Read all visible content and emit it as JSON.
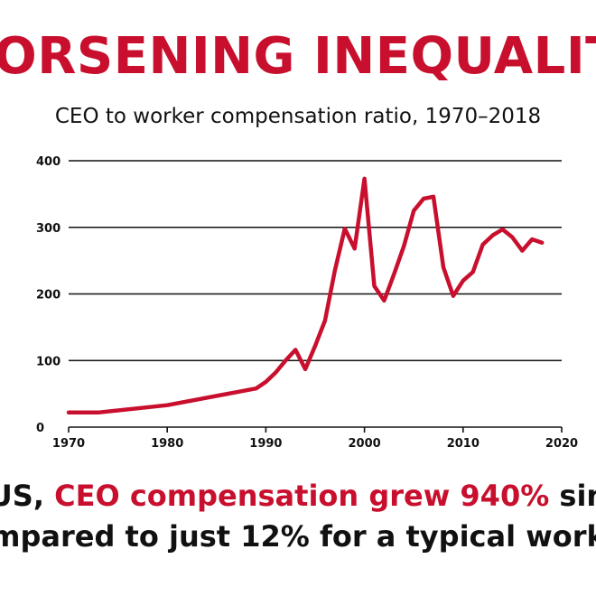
{
  "headline": "ORSENING INEQUALIT",
  "caption": {
    "line1_prefix": "US, ",
    "line1_highlight": "CEO compensation grew 940%",
    "line1_suffix": " sin",
    "line2": "mpared to just 12% for a typical work"
  },
  "colors": {
    "accent": "#c8102e",
    "text": "#111111",
    "grid": "#111111"
  },
  "chart_data": {
    "type": "line",
    "title": "CEO to worker compensation ratio, 1970–2018",
    "xlabel": "",
    "ylabel": "",
    "xlim": [
      1970,
      2020
    ],
    "ylim": [
      0,
      400
    ],
    "x_ticks": [
      1970,
      1980,
      1990,
      2000,
      2010,
      2020
    ],
    "y_ticks": [
      0,
      100,
      200,
      300,
      400
    ],
    "grid": "horizontal",
    "series": [
      {
        "color": "#c8102e",
        "x": [
          1970,
          1973,
          1980,
          1989,
          1990,
          1991,
          1992,
          1993,
          1994,
          1995,
          1996,
          1997,
          1998,
          1999,
          2000,
          2001,
          2002,
          2003,
          2004,
          2005,
          2006,
          2007,
          2008,
          2009,
          2010,
          2011,
          2012,
          2013,
          2014,
          2015,
          2016,
          2017,
          2018
        ],
        "y": [
          22,
          22,
          33,
          58,
          68,
          82,
          100,
          116,
          87,
          122,
          160,
          235,
          298,
          268,
          373,
          212,
          190,
          230,
          272,
          325,
          343,
          346,
          240,
          197,
          220,
          233,
          274,
          288,
          297,
          285,
          265,
          282,
          277
        ]
      }
    ]
  }
}
